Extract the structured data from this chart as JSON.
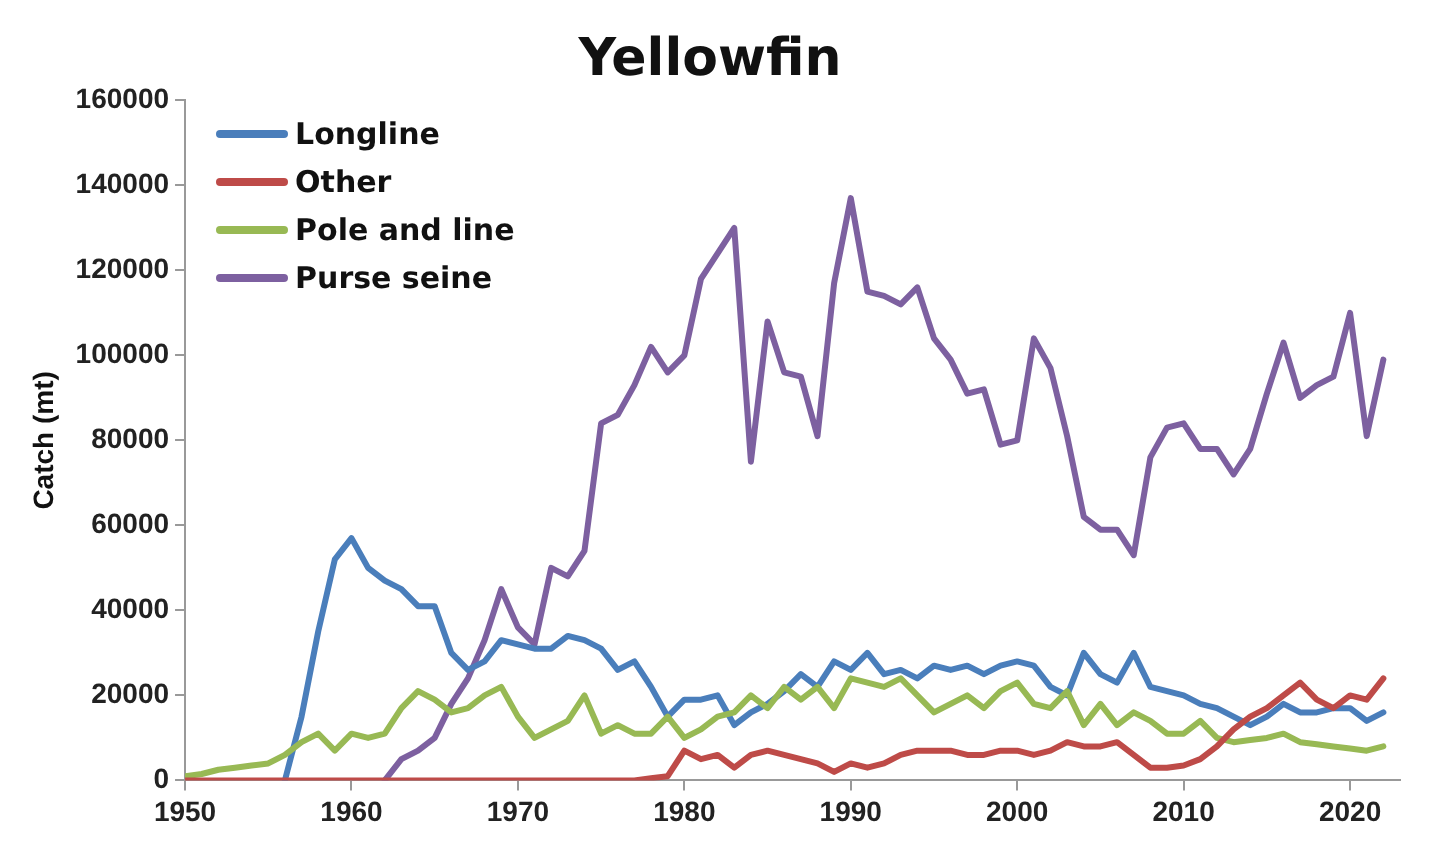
{
  "chart_data": {
    "type": "line",
    "title": "Yellowfin",
    "ylabel": "Catch (mt)",
    "x": [
      1950,
      1951,
      1952,
      1953,
      1954,
      1955,
      1956,
      1957,
      1958,
      1959,
      1960,
      1961,
      1962,
      1963,
      1964,
      1965,
      1966,
      1967,
      1968,
      1969,
      1970,
      1971,
      1972,
      1973,
      1974,
      1975,
      1976,
      1977,
      1978,
      1979,
      1980,
      1981,
      1982,
      1983,
      1984,
      1985,
      1986,
      1987,
      1988,
      1989,
      1990,
      1991,
      1992,
      1993,
      1994,
      1995,
      1996,
      1997,
      1998,
      1999,
      2000,
      2001,
      2002,
      2003,
      2004,
      2005,
      2006,
      2007,
      2008,
      2009,
      2010,
      2011,
      2012,
      2013,
      2014,
      2015,
      2016,
      2017,
      2018,
      2019,
      2020,
      2021,
      2022
    ],
    "series": [
      {
        "name": "Longline",
        "color": "#4a7ebb",
        "values": [
          null,
          null,
          null,
          null,
          null,
          null,
          0,
          15000,
          35000,
          52000,
          57000,
          50000,
          47000,
          45000,
          41000,
          41000,
          30000,
          26000,
          28000,
          33000,
          32000,
          31000,
          31000,
          34000,
          33000,
          31000,
          26000,
          28000,
          22000,
          15000,
          19000,
          19000,
          20000,
          13000,
          16000,
          18000,
          21000,
          25000,
          22000,
          28000,
          26000,
          30000,
          25000,
          26000,
          24000,
          27000,
          26000,
          27000,
          25000,
          27000,
          28000,
          27000,
          22000,
          20000,
          30000,
          25000,
          23000,
          30000,
          22000,
          21000,
          20000,
          18000,
          17000,
          15000,
          13000,
          15000,
          18000,
          16000,
          16000,
          17000,
          17000,
          14000,
          16000
        ]
      },
      {
        "name": "Other",
        "color": "#be4b48",
        "values": [
          0,
          0,
          0,
          0,
          0,
          0,
          0,
          0,
          0,
          0,
          0,
          0,
          0,
          0,
          0,
          0,
          0,
          0,
          0,
          0,
          0,
          0,
          0,
          0,
          0,
          0,
          0,
          0,
          500,
          1000,
          7000,
          5000,
          6000,
          3000,
          6000,
          7000,
          6000,
          5000,
          4000,
          2000,
          4000,
          3000,
          4000,
          6000,
          7000,
          7000,
          7000,
          6000,
          6000,
          7000,
          7000,
          6000,
          7000,
          9000,
          8000,
          8000,
          9000,
          6000,
          3000,
          3000,
          3500,
          5000,
          8000,
          12000,
          15000,
          17000,
          20000,
          23000,
          19000,
          17000,
          20000,
          19000,
          24000
        ]
      },
      {
        "name": "Pole and line",
        "color": "#98b954",
        "values": [
          1000,
          1500,
          2500,
          3000,
          3500,
          4000,
          6000,
          9000,
          11000,
          7000,
          11000,
          10000,
          11000,
          17000,
          21000,
          19000,
          16000,
          17000,
          20000,
          22000,
          15000,
          10000,
          12000,
          14000,
          20000,
          11000,
          13000,
          11000,
          11000,
          15000,
          10000,
          12000,
          15000,
          16000,
          20000,
          17000,
          22000,
          19000,
          22000,
          17000,
          24000,
          23000,
          22000,
          24000,
          20000,
          16000,
          18000,
          20000,
          17000,
          21000,
          23000,
          18000,
          17000,
          21000,
          13000,
          18000,
          13000,
          16000,
          14000,
          11000,
          11000,
          14000,
          10000,
          9000,
          9500,
          10000,
          11000,
          9000,
          8500,
          8000,
          7500,
          7000,
          8000
        ]
      },
      {
        "name": "Purse seine",
        "color": "#7d60a0",
        "values": [
          null,
          null,
          null,
          null,
          null,
          null,
          null,
          null,
          null,
          null,
          null,
          null,
          0,
          5000,
          7000,
          10000,
          18000,
          24000,
          33000,
          45000,
          36000,
          32000,
          50000,
          48000,
          54000,
          84000,
          86000,
          93000,
          102000,
          96000,
          100000,
          118000,
          124000,
          130000,
          75000,
          108000,
          96000,
          95000,
          81000,
          117000,
          137000,
          115000,
          114000,
          112000,
          116000,
          104000,
          99000,
          91000,
          92000,
          79000,
          80000,
          104000,
          97000,
          81000,
          62000,
          59000,
          59000,
          53000,
          76000,
          83000,
          84000,
          78000,
          78000,
          72000,
          78000,
          91000,
          103000,
          90000,
          93000,
          95000,
          110000,
          81000,
          99000
        ]
      }
    ],
    "xlim": [
      1950,
      2023
    ],
    "xticks": [
      1950,
      1960,
      1970,
      1980,
      1990,
      2000,
      2010,
      2020
    ],
    "ylim": [
      0,
      160000
    ],
    "yticks": [
      0,
      20000,
      40000,
      60000,
      80000,
      100000,
      120000,
      140000,
      160000
    ],
    "grid": false,
    "legend": "top left",
    "marker": "none",
    "line_style": "solid"
  }
}
